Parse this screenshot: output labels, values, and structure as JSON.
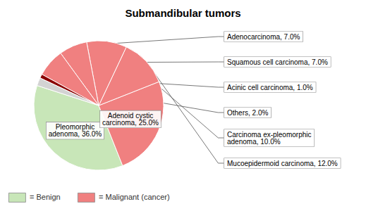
{
  "chart_data": {
    "type": "pie",
    "title": "Submandibular tumors",
    "categories": [
      "Pleomorphic\nadenoma, 36.0%",
      "Adenoid cystic\ncarcinoma, 25.0%",
      "Mucoepidermoid carcinoma, 12.0%",
      "Carcinoma ex-pleomorphic\nadenoma, 10.0%",
      "Adenocarcinoma, 7.0%",
      "Squamous cell carcinoma, 7.0%",
      "Acinic cell carcinoma, 1.0%",
      "Others, 2.0%"
    ],
    "values": [
      36.0,
      25.0,
      12.0,
      10.0,
      7.0,
      7.0,
      1.0,
      2.0
    ],
    "colors": [
      "#c8e6b8",
      "#f08080",
      "#f08080",
      "#f08080",
      "#f08080",
      "#f08080",
      "#8b0000",
      "#d3d3d3"
    ],
    "data_labels": true,
    "legend": "lower left",
    "legend_entries": [
      {
        "name": "= Benign",
        "color": "#c8e6b8"
      },
      {
        "name": "= Malignant (cancer)",
        "color": "#f08080"
      }
    ]
  }
}
